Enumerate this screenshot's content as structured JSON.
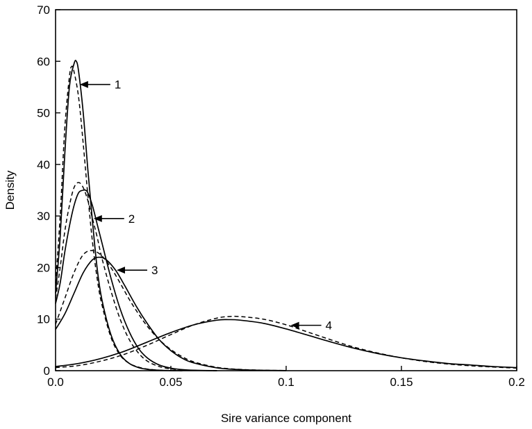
{
  "chart_data": {
    "type": "line",
    "xlabel": "Sire variance component",
    "ylabel": "Density",
    "xlim": [
      0,
      0.2
    ],
    "ylim": [
      0,
      70
    ],
    "xticks": [
      0,
      0.05,
      0.1,
      0.15,
      0.2
    ],
    "xtick_labels": [
      "0.0",
      "0.05",
      "0.1",
      "0.15",
      "0.2"
    ],
    "yticks": [
      0,
      10,
      20,
      30,
      40,
      50,
      60,
      70
    ],
    "ytick_labels": [
      "0",
      "10",
      "20",
      "30",
      "40",
      "50",
      "60",
      "70"
    ],
    "grid": false,
    "series": [
      {
        "label": "1",
        "style": "solid",
        "x": [
          0.0,
          0.002,
          0.004,
          0.006,
          0.008,
          0.009,
          0.01,
          0.012,
          0.014,
          0.016,
          0.018,
          0.02,
          0.024,
          0.028,
          0.032,
          0.036,
          0.04,
          0.045,
          0.05,
          0.055
        ],
        "y": [
          15,
          26,
          42,
          55,
          59.5,
          60,
          58,
          50,
          39,
          29,
          20,
          14,
          7,
          3.2,
          1.4,
          0.6,
          0.25,
          0.08,
          0.02,
          0
        ]
      },
      {
        "label": "1",
        "style": "dashed",
        "x": [
          0.0,
          0.002,
          0.004,
          0.006,
          0.007,
          0.008,
          0.01,
          0.012,
          0.014,
          0.016,
          0.018,
          0.02,
          0.024,
          0.028,
          0.032,
          0.036,
          0.04,
          0.045,
          0.05,
          0.055
        ],
        "y": [
          17,
          30,
          47,
          57,
          59,
          58,
          53,
          44,
          34,
          25,
          18,
          13,
          6.5,
          3,
          1.4,
          0.7,
          0.3,
          0.1,
          0.03,
          0
        ]
      },
      {
        "label": "2",
        "style": "solid",
        "x": [
          0.0,
          0.002,
          0.004,
          0.006,
          0.008,
          0.01,
          0.012,
          0.013,
          0.014,
          0.016,
          0.018,
          0.02,
          0.024,
          0.028,
          0.032,
          0.036,
          0.04,
          0.045,
          0.05,
          0.055,
          0.06,
          0.07
        ],
        "y": [
          13,
          17,
          23,
          28,
          32,
          34.5,
          35,
          35,
          34.5,
          32,
          28.5,
          25,
          18,
          12,
          7.5,
          4.3,
          2.4,
          1.1,
          0.5,
          0.2,
          0.08,
          0
        ]
      },
      {
        "label": "2",
        "style": "dashed",
        "x": [
          0.0,
          0.002,
          0.004,
          0.006,
          0.008,
          0.01,
          0.012,
          0.014,
          0.016,
          0.018,
          0.02,
          0.024,
          0.028,
          0.032,
          0.036,
          0.04,
          0.045,
          0.05,
          0.055,
          0.06,
          0.07
        ],
        "y": [
          14,
          20,
          27,
          32,
          35.5,
          36.5,
          35.5,
          33,
          29.5,
          26,
          22,
          15.5,
          10,
          6,
          3.4,
          1.8,
          0.8,
          0.35,
          0.15,
          0.06,
          0
        ]
      },
      {
        "label": "3",
        "style": "solid",
        "x": [
          0.0,
          0.004,
          0.008,
          0.012,
          0.016,
          0.019,
          0.022,
          0.026,
          0.03,
          0.035,
          0.04,
          0.045,
          0.05,
          0.055,
          0.06,
          0.07,
          0.08,
          0.09,
          0.1
        ],
        "y": [
          8,
          11,
          15,
          19,
          21.5,
          22,
          21.5,
          19.5,
          16.5,
          12.5,
          9,
          6,
          3.9,
          2.4,
          1.5,
          0.55,
          0.2,
          0.07,
          0.02
        ]
      },
      {
        "label": "3",
        "style": "dashed",
        "x": [
          0.0,
          0.004,
          0.008,
          0.012,
          0.016,
          0.02,
          0.024,
          0.028,
          0.032,
          0.036,
          0.04,
          0.045,
          0.05,
          0.055,
          0.06,
          0.07,
          0.08,
          0.09,
          0.1
        ],
        "y": [
          9,
          14,
          19,
          22.5,
          23.3,
          22.3,
          20,
          17,
          13.8,
          11,
          8.5,
          6,
          4.1,
          2.7,
          1.7,
          0.65,
          0.25,
          0.09,
          0.03
        ]
      },
      {
        "label": "4",
        "style": "solid",
        "x": [
          0.0,
          0.01,
          0.02,
          0.03,
          0.04,
          0.05,
          0.06,
          0.07,
          0.075,
          0.08,
          0.09,
          0.1,
          0.11,
          0.12,
          0.13,
          0.14,
          0.15,
          0.16,
          0.17,
          0.18,
          0.19,
          0.2
        ],
        "y": [
          0.8,
          1.4,
          2.4,
          3.8,
          5.6,
          7.4,
          8.9,
          9.8,
          9.9,
          9.8,
          9.2,
          8.1,
          6.8,
          5.5,
          4.3,
          3.3,
          2.5,
          1.9,
          1.4,
          1.1,
          0.8,
          0.6
        ]
      },
      {
        "label": "4",
        "style": "dashed",
        "x": [
          0.0,
          0.01,
          0.02,
          0.03,
          0.04,
          0.05,
          0.06,
          0.07,
          0.075,
          0.08,
          0.09,
          0.1,
          0.11,
          0.12,
          0.13,
          0.14,
          0.15,
          0.16,
          0.17,
          0.18,
          0.19,
          0.2
        ],
        "y": [
          0.6,
          1.0,
          1.9,
          3.2,
          5.0,
          7.0,
          8.9,
          10.2,
          10.5,
          10.5,
          10.0,
          8.9,
          7.4,
          5.9,
          4.5,
          3.4,
          2.5,
          1.8,
          1.3,
          0.95,
          0.7,
          0.5
        ]
      }
    ],
    "annotations": [
      {
        "text": "1",
        "points_to": {
          "x": 0.0105,
          "y": 55.5
        }
      },
      {
        "text": "2",
        "points_to": {
          "x": 0.0165,
          "y": 29.5
        }
      },
      {
        "text": "3",
        "points_to": {
          "x": 0.0265,
          "y": 19.5
        }
      },
      {
        "text": "4",
        "points_to": {
          "x": 0.102,
          "y": 8.8
        }
      }
    ]
  }
}
